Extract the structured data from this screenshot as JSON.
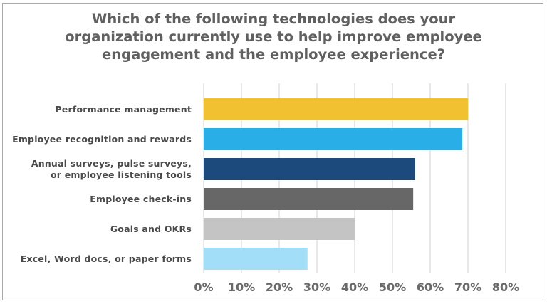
{
  "chart_data": {
    "type": "bar",
    "orientation": "horizontal",
    "title_lines": [
      "Which of the following technologies does your",
      "organization currently use to help improve employee",
      "engagement and the employee experience?"
    ],
    "categories": [
      [
        "Performance management"
      ],
      [
        "Employee recognition and rewards"
      ],
      [
        "Annual surveys, pulse surveys,",
        "or employee listening tools"
      ],
      [
        "Employee check-ins"
      ],
      [
        "Goals and OKRs"
      ],
      [
        "Excel, Word docs, or paper forms"
      ]
    ],
    "values": [
      70,
      68.5,
      56,
      55.5,
      40,
      27.5
    ],
    "colors": [
      "#f2c131",
      "#2aaee8",
      "#1c4a7c",
      "#676767",
      "#c4c4c4",
      "#a2def7"
    ],
    "xlim": [
      0,
      80
    ],
    "xticks": [
      0,
      10,
      20,
      30,
      40,
      50,
      60,
      70,
      80
    ],
    "tick_suffix": "%",
    "grid": true
  }
}
